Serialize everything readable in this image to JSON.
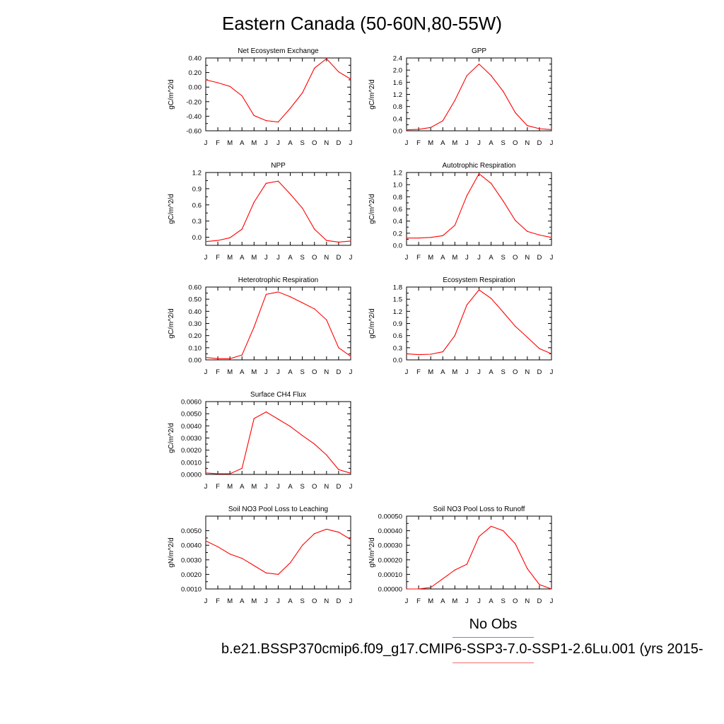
{
  "title": "Eastern Canada (50-60N,80-55W)",
  "legend": {
    "obs_label": "No Obs",
    "model_label": "b.e21.BSSP370cmip6.f09_g17.CMIP6-SSP3-7.0-SSP1-2.6Lu.001 (yrs 2015-",
    "obs_color": "#7b7bf0",
    "model_color": "#f07070"
  },
  "series_color": "#ff0000",
  "chart_data": [
    {
      "type": "line",
      "title": "Net Ecosystem Exchange",
      "ylabel": "gC/m^2/d",
      "categories": [
        "J",
        "F",
        "M",
        "A",
        "M",
        "J",
        "J",
        "A",
        "S",
        "O",
        "N",
        "D",
        "J"
      ],
      "ylim": [
        -0.6,
        0.4
      ],
      "yticks": [
        "0.40",
        "0.20",
        "0.00",
        "-0.20",
        "-0.40",
        "-0.60"
      ],
      "yticks_values": [
        0.4,
        0.2,
        0.0,
        -0.2,
        -0.4,
        -0.6
      ],
      "values": [
        0.1,
        0.06,
        0.01,
        -0.12,
        -0.39,
        -0.46,
        -0.48,
        -0.29,
        -0.08,
        0.26,
        0.39,
        0.21,
        0.11
      ]
    },
    {
      "type": "line",
      "title": "GPP",
      "ylabel": "gC/m^2/d",
      "categories": [
        "J",
        "F",
        "M",
        "A",
        "M",
        "J",
        "J",
        "A",
        "S",
        "O",
        "N",
        "D",
        "J"
      ],
      "ylim": [
        0,
        2.4
      ],
      "yticks": [
        "2.4",
        "2.0",
        "1.6",
        "1.2",
        "0.8",
        "0.4",
        "0.0"
      ],
      "yticks_values": [
        2.4,
        2.0,
        1.6,
        1.2,
        0.8,
        0.4,
        0.0
      ],
      "values": [
        0.03,
        0.05,
        0.11,
        0.33,
        1.0,
        1.82,
        2.2,
        1.82,
        1.3,
        0.6,
        0.17,
        0.07,
        0.04
      ]
    },
    {
      "type": "line",
      "title": "NPP",
      "ylabel": "gC/m^2/d",
      "categories": [
        "J",
        "F",
        "M",
        "A",
        "M",
        "J",
        "J",
        "A",
        "S",
        "O",
        "N",
        "D",
        "J"
      ],
      "ylim": [
        -0.15,
        1.2
      ],
      "yticks": [
        "1.2",
        "0.9",
        "0.6",
        "0.3",
        "0.0"
      ],
      "yticks_values": [
        1.2,
        0.9,
        0.6,
        0.3,
        0.0
      ],
      "values": [
        -0.08,
        -0.06,
        -0.01,
        0.15,
        0.65,
        1.0,
        1.04,
        0.8,
        0.54,
        0.15,
        -0.06,
        -0.09,
        -0.07
      ]
    },
    {
      "type": "line",
      "title": "Autotrophic Respiration",
      "ylabel": "gC/m^2/d",
      "categories": [
        "J",
        "F",
        "M",
        "A",
        "M",
        "J",
        "J",
        "A",
        "S",
        "O",
        "N",
        "D",
        "J"
      ],
      "ylim": [
        0,
        1.2
      ],
      "yticks": [
        "1.2",
        "1.0",
        "0.8",
        "0.6",
        "0.4",
        "0.2",
        "0.0"
      ],
      "yticks_values": [
        1.2,
        1.0,
        0.8,
        0.6,
        0.4,
        0.2,
        0.0
      ],
      "values": [
        0.12,
        0.12,
        0.13,
        0.16,
        0.33,
        0.82,
        1.18,
        1.02,
        0.73,
        0.41,
        0.23,
        0.17,
        0.13
      ]
    },
    {
      "type": "line",
      "title": "Heterotrophic Respiration",
      "ylabel": "gC/m^2/d",
      "categories": [
        "J",
        "F",
        "M",
        "A",
        "M",
        "J",
        "J",
        "A",
        "S",
        "O",
        "N",
        "D",
        "J"
      ],
      "ylim": [
        0,
        0.6
      ],
      "yticks": [
        "0.60",
        "0.50",
        "0.40",
        "0.30",
        "0.20",
        "0.10",
        "0.00"
      ],
      "yticks_values": [
        0.6,
        0.5,
        0.4,
        0.3,
        0.2,
        0.1,
        0.0
      ],
      "values": [
        0.02,
        0.01,
        0.01,
        0.04,
        0.27,
        0.54,
        0.56,
        0.52,
        0.47,
        0.42,
        0.33,
        0.1,
        0.03
      ]
    },
    {
      "type": "line",
      "title": "Ecosystem Respiration",
      "ylabel": "gC/m^2/d",
      "categories": [
        "J",
        "F",
        "M",
        "A",
        "M",
        "J",
        "J",
        "A",
        "S",
        "O",
        "N",
        "D",
        "J"
      ],
      "ylim": [
        0,
        1.8
      ],
      "yticks": [
        "1.8",
        "1.5",
        "1.2",
        "0.9",
        "0.6",
        "0.3",
        "0.0"
      ],
      "yticks_values": [
        1.8,
        1.5,
        1.2,
        0.9,
        0.6,
        0.3,
        0.0
      ],
      "values": [
        0.15,
        0.13,
        0.14,
        0.2,
        0.6,
        1.36,
        1.73,
        1.52,
        1.18,
        0.83,
        0.56,
        0.28,
        0.15
      ]
    },
    {
      "type": "line",
      "title": "Surface CH4 Flux",
      "ylabel": "gC/m^2/d",
      "categories": [
        "J",
        "F",
        "M",
        "A",
        "M",
        "J",
        "J",
        "A",
        "S",
        "O",
        "N",
        "D",
        "J"
      ],
      "ylim": [
        0,
        0.006
      ],
      "yticks": [
        "0.0060",
        "0.0050",
        "0.0040",
        "0.0030",
        "0.0020",
        "0.0010",
        "0.0000"
      ],
      "yticks_values": [
        0.006,
        0.005,
        0.004,
        0.003,
        0.002,
        0.001,
        0.0
      ],
      "values": [
        0.00012,
        5e-05,
        5e-05,
        0.0005,
        0.0046,
        0.00515,
        0.00455,
        0.00395,
        0.0032,
        0.0025,
        0.0016,
        0.0004,
        0.0001
      ]
    },
    {
      "type": "line",
      "title": "Soil NO3 Pool Loss to Leaching",
      "ylabel": "gN/m^2/d",
      "categories": [
        "J",
        "F",
        "M",
        "A",
        "M",
        "J",
        "J",
        "A",
        "S",
        "O",
        "N",
        "D",
        "J"
      ],
      "ylim": [
        0.001,
        0.006
      ],
      "yticks": [
        "0.0050",
        "0.0040",
        "0.0030",
        "0.0020",
        "0.0010"
      ],
      "yticks_values": [
        0.005,
        0.004,
        0.003,
        0.002,
        0.001
      ],
      "values": [
        0.0043,
        0.0039,
        0.0034,
        0.0031,
        0.0026,
        0.0021,
        0.002,
        0.0028,
        0.004,
        0.0048,
        0.0051,
        0.0049,
        0.0044
      ]
    },
    {
      "type": "line",
      "title": "Soil NO3 Pool Loss to Runoff",
      "ylabel": "gN/m^2/d",
      "categories": [
        "J",
        "F",
        "M",
        "A",
        "M",
        "J",
        "J",
        "A",
        "S",
        "O",
        "N",
        "D",
        "J"
      ],
      "ylim": [
        0,
        0.0005
      ],
      "yticks": [
        "0.00050",
        "0.00040",
        "0.00030",
        "0.00020",
        "0.00010",
        "0.00000"
      ],
      "yticks_values": [
        0.0005,
        0.0004,
        0.0003,
        0.0002,
        0.0001,
        0.0
      ],
      "values": [
        0.0,
        0.0,
        1e-05,
        7e-05,
        0.00013,
        0.00017,
        0.00036,
        0.00043,
        0.0004,
        0.00031,
        0.00014,
        3e-05,
        0.0
      ]
    }
  ]
}
